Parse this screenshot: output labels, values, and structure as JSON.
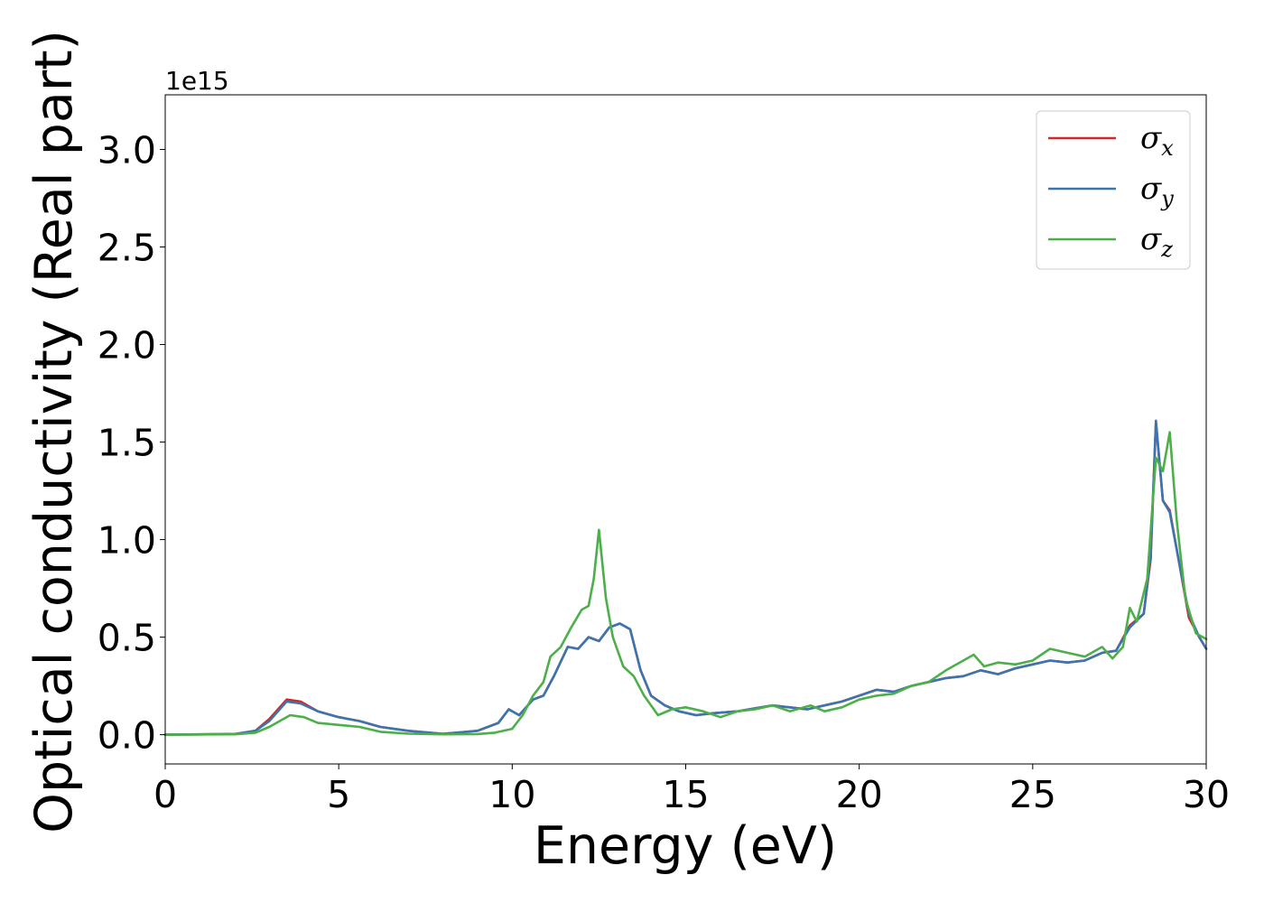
{
  "chart_data": {
    "type": "line",
    "xlabel": "Energy (eV)",
    "ylabel": "Optical conductivity (Real part)",
    "y_offset_label": "1e15",
    "y_scale": 1000000000000000.0,
    "xlim": [
      0,
      30
    ],
    "ylim": [
      -0.15,
      3.28
    ],
    "x_ticks": [
      0,
      5,
      10,
      15,
      20,
      25,
      30
    ],
    "x_tick_labels": [
      "0",
      "5",
      "10",
      "15",
      "20",
      "25",
      "30"
    ],
    "y_ticks": [
      0.0,
      0.5,
      1.0,
      1.5,
      2.0,
      2.5,
      3.0
    ],
    "y_tick_labels": [
      "0.0",
      "0.5",
      "1.0",
      "1.5",
      "2.0",
      "2.5",
      "3.0"
    ],
    "grid": false,
    "legend_position": "top-right",
    "series": [
      {
        "name": "σx",
        "symbol": "σ",
        "subscript": "x",
        "color": "#d62728",
        "points": [
          [
            0,
            0
          ],
          [
            2,
            0.003
          ],
          [
            2.6,
            0.02
          ],
          [
            3.0,
            0.08
          ],
          [
            3.5,
            0.18
          ],
          [
            3.9,
            0.17
          ],
          [
            4.4,
            0.12
          ],
          [
            5.0,
            0.09
          ],
          [
            5.6,
            0.07
          ],
          [
            6.2,
            0.04
          ],
          [
            7.0,
            0.02
          ],
          [
            8.0,
            0.004
          ],
          [
            9.0,
            0.02
          ],
          [
            9.6,
            0.06
          ],
          [
            9.9,
            0.13
          ],
          [
            10.2,
            0.1
          ],
          [
            10.6,
            0.18
          ],
          [
            10.9,
            0.2
          ],
          [
            11.2,
            0.3
          ],
          [
            11.6,
            0.45
          ],
          [
            11.9,
            0.44
          ],
          [
            12.2,
            0.5
          ],
          [
            12.5,
            0.48
          ],
          [
            12.8,
            0.55
          ],
          [
            13.1,
            0.57
          ],
          [
            13.4,
            0.54
          ],
          [
            13.7,
            0.33
          ],
          [
            14.0,
            0.2
          ],
          [
            14.4,
            0.15
          ],
          [
            14.8,
            0.12
          ],
          [
            15.3,
            0.1
          ],
          [
            15.8,
            0.11
          ],
          [
            16.5,
            0.12
          ],
          [
            17.5,
            0.15
          ],
          [
            18.5,
            0.13
          ],
          [
            19.0,
            0.15
          ],
          [
            19.5,
            0.17
          ],
          [
            20.0,
            0.2
          ],
          [
            20.5,
            0.23
          ],
          [
            21.0,
            0.22
          ],
          [
            21.5,
            0.25
          ],
          [
            22.0,
            0.27
          ],
          [
            22.5,
            0.29
          ],
          [
            23.0,
            0.3
          ],
          [
            23.5,
            0.33
          ],
          [
            24.0,
            0.31
          ],
          [
            24.5,
            0.34
          ],
          [
            25.0,
            0.36
          ],
          [
            25.5,
            0.38
          ],
          [
            26.0,
            0.37
          ],
          [
            26.5,
            0.38
          ],
          [
            27.0,
            0.42
          ],
          [
            27.4,
            0.43
          ],
          [
            27.8,
            0.56
          ],
          [
            28.2,
            0.62
          ],
          [
            28.4,
            0.9
          ],
          [
            28.55,
            1.6
          ],
          [
            28.75,
            1.2
          ],
          [
            28.95,
            1.15
          ],
          [
            29.2,
            0.9
          ],
          [
            29.5,
            0.6
          ],
          [
            29.8,
            0.5
          ],
          [
            30.0,
            0.44
          ]
        ]
      },
      {
        "name": "σy",
        "symbol": "σ",
        "subscript": "y",
        "color": "#3b75af",
        "points": [
          [
            0,
            0
          ],
          [
            2,
            0.003
          ],
          [
            2.6,
            0.02
          ],
          [
            3.0,
            0.07
          ],
          [
            3.5,
            0.17
          ],
          [
            3.9,
            0.16
          ],
          [
            4.4,
            0.12
          ],
          [
            5.0,
            0.09
          ],
          [
            5.6,
            0.07
          ],
          [
            6.2,
            0.04
          ],
          [
            7.0,
            0.02
          ],
          [
            8.0,
            0.004
          ],
          [
            9.0,
            0.02
          ],
          [
            9.6,
            0.06
          ],
          [
            9.9,
            0.13
          ],
          [
            10.2,
            0.1
          ],
          [
            10.6,
            0.18
          ],
          [
            10.9,
            0.2
          ],
          [
            11.2,
            0.3
          ],
          [
            11.6,
            0.45
          ],
          [
            11.9,
            0.44
          ],
          [
            12.2,
            0.5
          ],
          [
            12.5,
            0.48
          ],
          [
            12.8,
            0.55
          ],
          [
            13.1,
            0.57
          ],
          [
            13.4,
            0.54
          ],
          [
            13.7,
            0.33
          ],
          [
            14.0,
            0.2
          ],
          [
            14.4,
            0.15
          ],
          [
            14.8,
            0.12
          ],
          [
            15.3,
            0.1
          ],
          [
            15.8,
            0.11
          ],
          [
            16.5,
            0.12
          ],
          [
            17.5,
            0.15
          ],
          [
            18.5,
            0.13
          ],
          [
            19.0,
            0.15
          ],
          [
            19.5,
            0.17
          ],
          [
            20.0,
            0.2
          ],
          [
            20.5,
            0.23
          ],
          [
            21.0,
            0.22
          ],
          [
            21.5,
            0.25
          ],
          [
            22.0,
            0.27
          ],
          [
            22.5,
            0.29
          ],
          [
            23.0,
            0.3
          ],
          [
            23.5,
            0.33
          ],
          [
            24.0,
            0.31
          ],
          [
            24.5,
            0.34
          ],
          [
            25.0,
            0.36
          ],
          [
            25.5,
            0.38
          ],
          [
            26.0,
            0.37
          ],
          [
            26.5,
            0.38
          ],
          [
            27.0,
            0.42
          ],
          [
            27.4,
            0.43
          ],
          [
            27.8,
            0.55
          ],
          [
            28.2,
            0.62
          ],
          [
            28.4,
            0.92
          ],
          [
            28.55,
            1.61
          ],
          [
            28.75,
            1.2
          ],
          [
            28.95,
            1.14
          ],
          [
            29.2,
            0.9
          ],
          [
            29.5,
            0.62
          ],
          [
            29.8,
            0.5
          ],
          [
            30.0,
            0.44
          ]
        ]
      },
      {
        "name": "σz",
        "symbol": "σ",
        "subscript": "z",
        "color": "#4daf4a",
        "points": [
          [
            0,
            0
          ],
          [
            2,
            0.002
          ],
          [
            2.6,
            0.01
          ],
          [
            3.0,
            0.04
          ],
          [
            3.6,
            0.1
          ],
          [
            4.0,
            0.09
          ],
          [
            4.4,
            0.06
          ],
          [
            5.0,
            0.05
          ],
          [
            5.6,
            0.04
          ],
          [
            6.2,
            0.015
          ],
          [
            7.0,
            0.005
          ],
          [
            8.0,
            0.002
          ],
          [
            9.0,
            0.003
          ],
          [
            9.5,
            0.01
          ],
          [
            10.0,
            0.03
          ],
          [
            10.3,
            0.1
          ],
          [
            10.6,
            0.2
          ],
          [
            10.9,
            0.27
          ],
          [
            11.1,
            0.4
          ],
          [
            11.4,
            0.45
          ],
          [
            11.7,
            0.55
          ],
          [
            12.0,
            0.64
          ],
          [
            12.2,
            0.66
          ],
          [
            12.35,
            0.8
          ],
          [
            12.5,
            1.05
          ],
          [
            12.7,
            0.7
          ],
          [
            12.9,
            0.5
          ],
          [
            13.2,
            0.35
          ],
          [
            13.5,
            0.3
          ],
          [
            13.8,
            0.2
          ],
          [
            14.2,
            0.1
          ],
          [
            14.6,
            0.13
          ],
          [
            15.0,
            0.14
          ],
          [
            15.5,
            0.12
          ],
          [
            16.0,
            0.09
          ],
          [
            16.5,
            0.12
          ],
          [
            17.0,
            0.13
          ],
          [
            17.5,
            0.15
          ],
          [
            18.0,
            0.12
          ],
          [
            18.6,
            0.15
          ],
          [
            19.0,
            0.12
          ],
          [
            19.5,
            0.14
          ],
          [
            20.0,
            0.18
          ],
          [
            20.5,
            0.2
          ],
          [
            21.0,
            0.21
          ],
          [
            21.5,
            0.25
          ],
          [
            22.0,
            0.27
          ],
          [
            22.5,
            0.33
          ],
          [
            23.0,
            0.38
          ],
          [
            23.3,
            0.41
          ],
          [
            23.6,
            0.35
          ],
          [
            24.0,
            0.37
          ],
          [
            24.5,
            0.36
          ],
          [
            25.0,
            0.38
          ],
          [
            25.5,
            0.44
          ],
          [
            26.0,
            0.42
          ],
          [
            26.5,
            0.4
          ],
          [
            27.0,
            0.45
          ],
          [
            27.3,
            0.39
          ],
          [
            27.6,
            0.45
          ],
          [
            27.8,
            0.65
          ],
          [
            28.0,
            0.58
          ],
          [
            28.3,
            0.8
          ],
          [
            28.55,
            1.42
          ],
          [
            28.75,
            1.35
          ],
          [
            28.95,
            1.55
          ],
          [
            29.15,
            1.1
          ],
          [
            29.4,
            0.7
          ],
          [
            29.7,
            0.52
          ],
          [
            30.0,
            0.49
          ]
        ]
      }
    ]
  }
}
